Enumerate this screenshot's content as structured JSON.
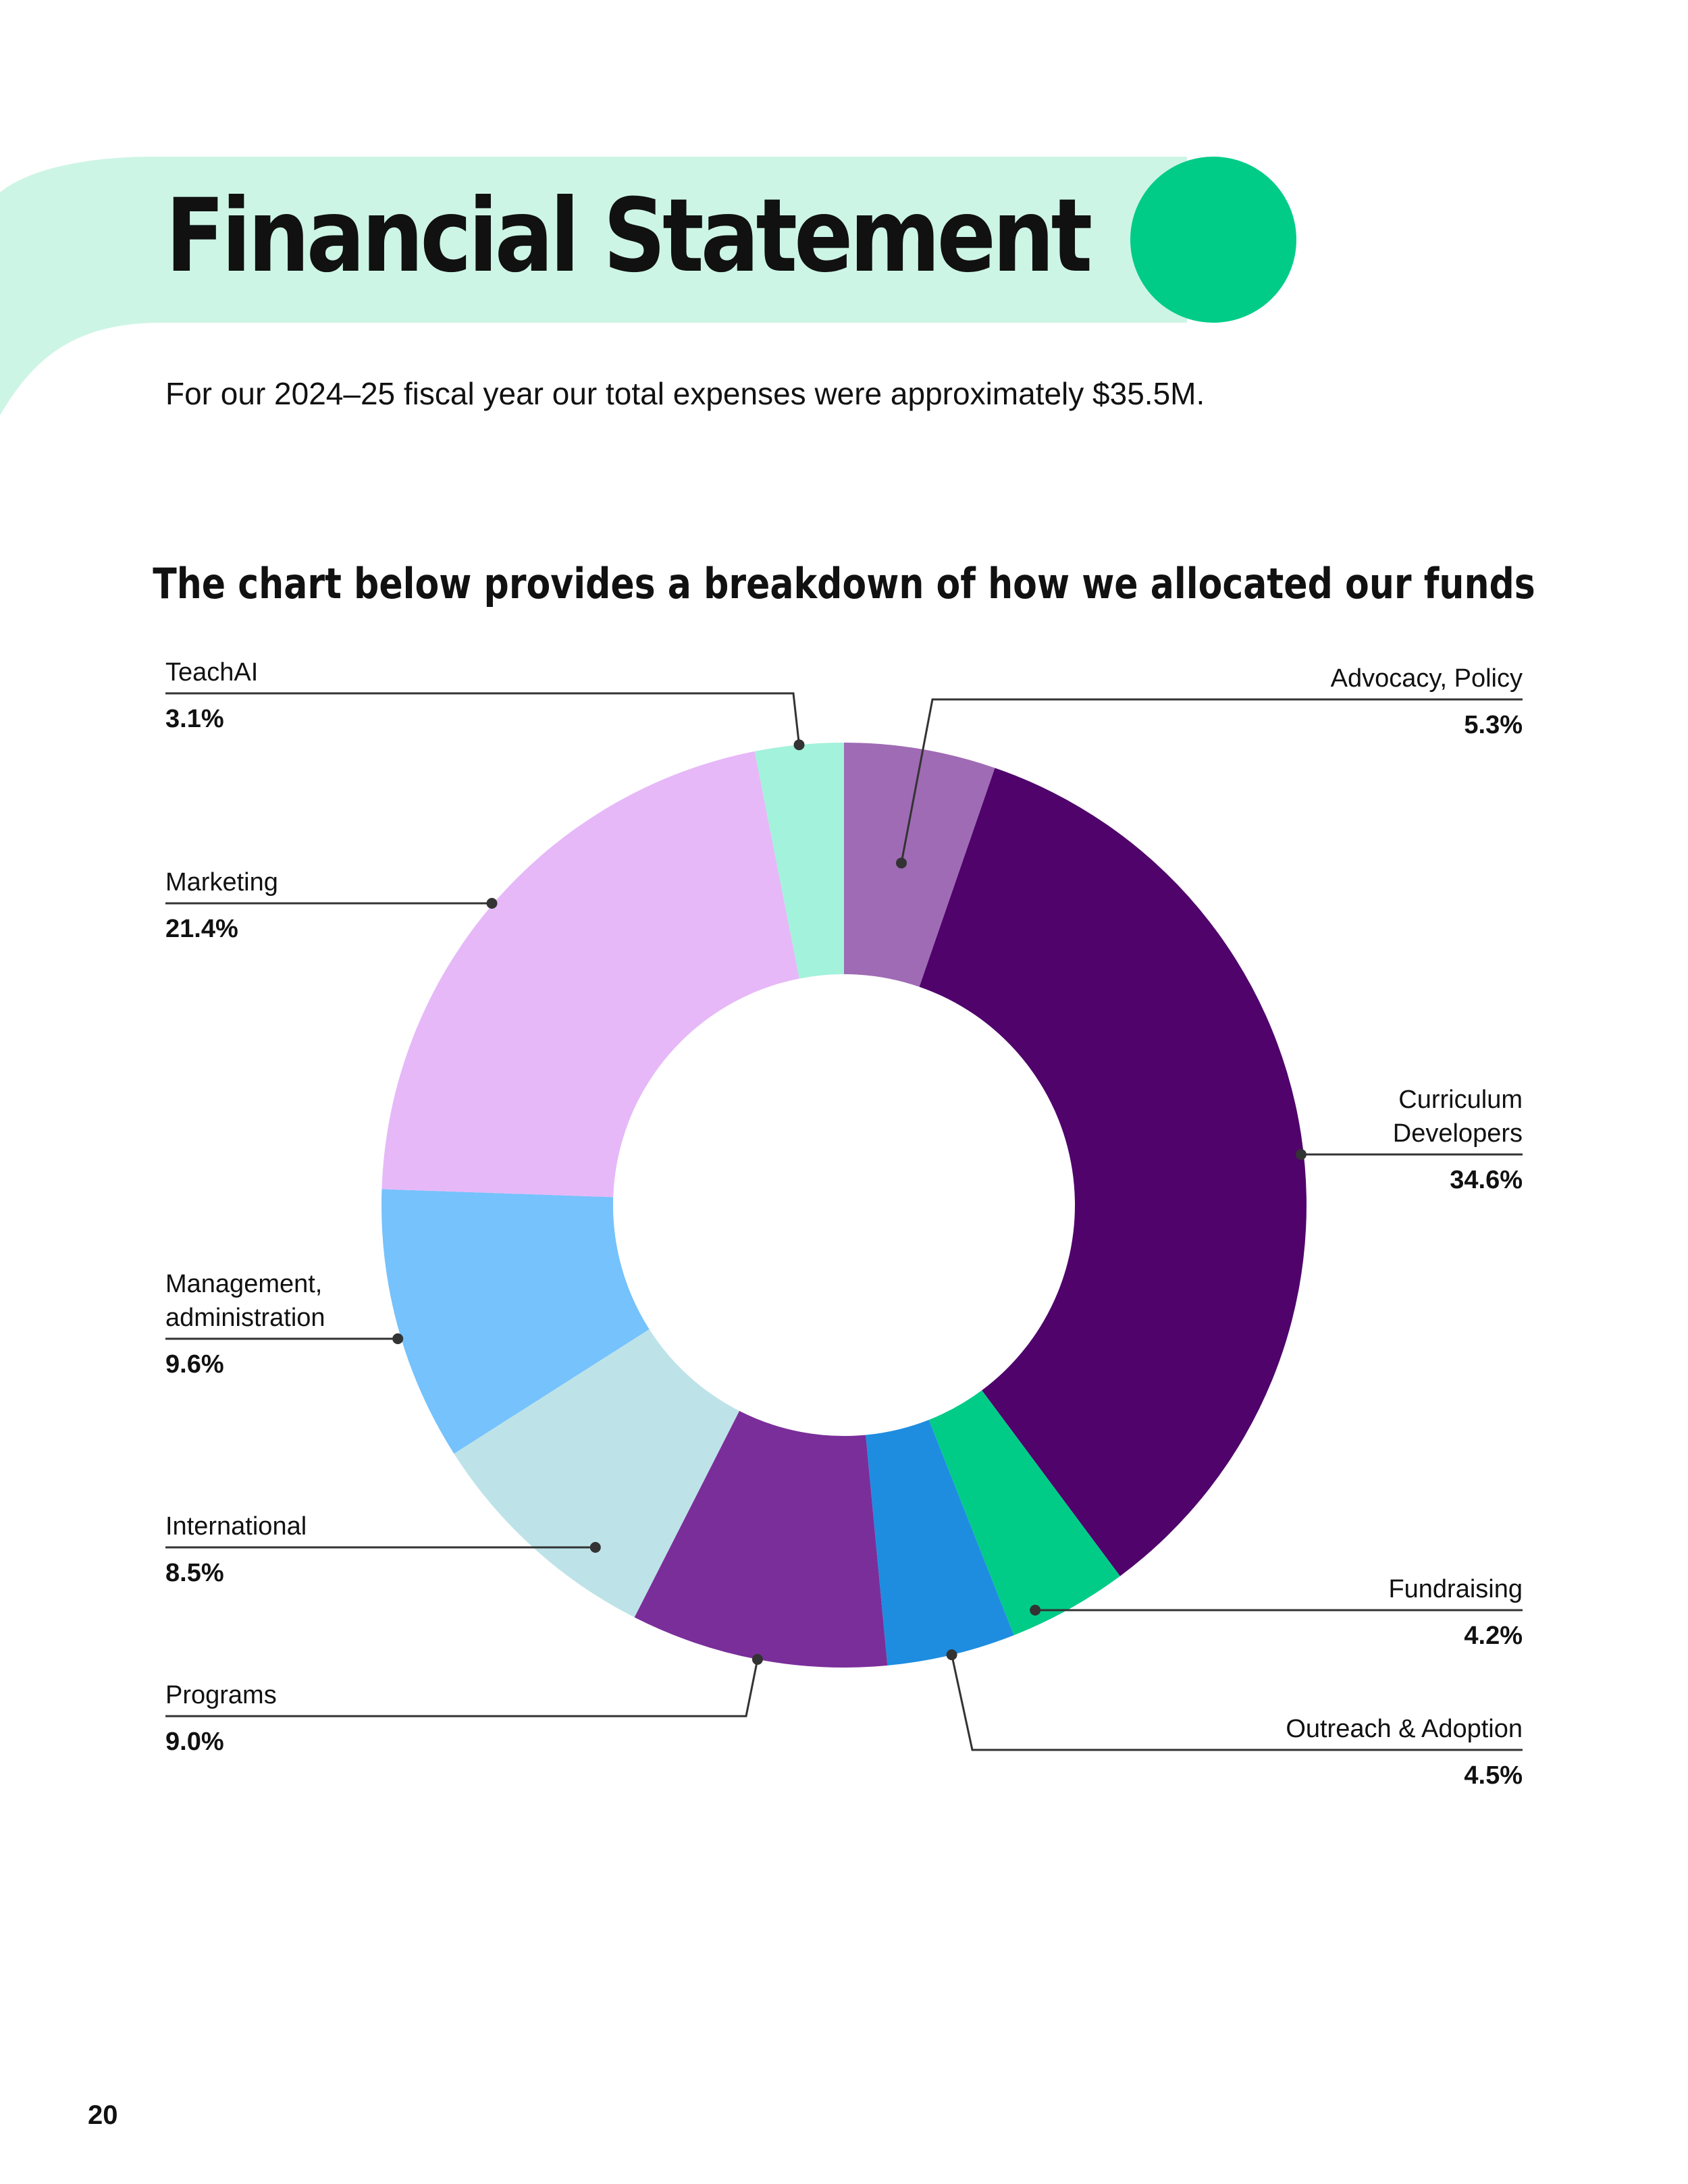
{
  "page": {
    "title": "Financial Statement",
    "subtitle": "For our 2024–25 fiscal year our total expenses were approximately $35.5M.",
    "page_number": "20"
  },
  "colors": {
    "band": "#cdf5e6",
    "accent_circle": "#00cc88",
    "leader_line": "#333333"
  },
  "chart_data": {
    "type": "pie",
    "donut": true,
    "title": "The chart below provides a breakdown of how we allocated our funds",
    "slices": [
      {
        "label": "Advocacy, Policy",
        "value": 5.3,
        "display": "5.3%",
        "color": "#9f6bb5"
      },
      {
        "label": "Curriculum\nDevelopers",
        "value": 34.6,
        "display": "34.6%",
        "color": "#4f036b"
      },
      {
        "label": "Fundraising",
        "value": 4.2,
        "display": "4.2%",
        "color": "#00cc88"
      },
      {
        "label": "Outreach & Adoption",
        "value": 4.5,
        "display": "4.5%",
        "color": "#1e8de0"
      },
      {
        "label": "Programs",
        "value": 9.0,
        "display": "9.0%",
        "color": "#7a2e9a"
      },
      {
        "label": "International",
        "value": 8.5,
        "display": "8.5%",
        "color": "#bde3e8"
      },
      {
        "label": "Management,\nadministration",
        "value": 9.6,
        "display": "9.6%",
        "color": "#75c2fc"
      },
      {
        "label": "Marketing",
        "value": 21.4,
        "display": "21.4%",
        "color": "#e6b8f8"
      },
      {
        "label": "TeachAI",
        "value": 3.1,
        "display": "3.1%",
        "color": "#a3f2db"
      }
    ]
  }
}
